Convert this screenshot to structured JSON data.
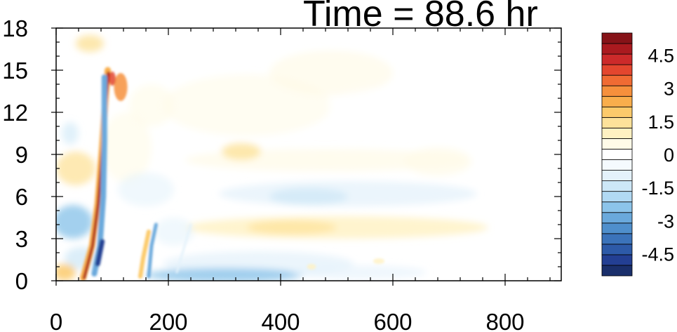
{
  "chart_data": {
    "type": "heatmap",
    "title": "Time = 88.6 hr",
    "xlabel": "",
    "ylabel": "",
    "xlim": [
      0,
      900
    ],
    "ylim": [
      0,
      18
    ],
    "x_ticks": [
      0,
      200,
      400,
      600,
      800
    ],
    "x_tick_labels": [
      "0",
      "200",
      "400",
      "600",
      "800"
    ],
    "y_ticks": [
      0,
      3,
      6,
      9,
      12,
      15,
      18
    ],
    "y_tick_labels": [
      "0",
      "3",
      "6",
      "9",
      "12",
      "15",
      "18"
    ],
    "grid": false,
    "colorbar": {
      "placement": "right",
      "levels": [
        -5.5,
        -5,
        -4.5,
        -4,
        -3.5,
        -3,
        -2.5,
        -2,
        -1.5,
        -1,
        -0.5,
        0,
        0.5,
        1,
        1.5,
        2,
        2.5,
        3,
        3.5,
        4,
        4.5,
        5,
        5.5
      ],
      "labels": [
        "4.5",
        "3",
        "1.5",
        "0",
        "-1.5",
        "-3",
        "-4.5"
      ],
      "label_values": [
        4.5,
        3,
        1.5,
        0,
        -1.5,
        -3,
        -4.5
      ],
      "colors": [
        "#1a2f6b",
        "#233f93",
        "#2d5aa8",
        "#3b73ba",
        "#4f8fcc",
        "#6aa9dc",
        "#8cc4ea",
        "#b1d9f3",
        "#cde7f7",
        "#e4f2fb",
        "#f5fafe",
        "#ffffff",
        "#fffbe8",
        "#fff1c2",
        "#fde29a",
        "#fcca6b",
        "#f9ae4c",
        "#f6903c",
        "#f06b33",
        "#e3462e",
        "#cc2a2a",
        "#aa1a1f",
        "#861318"
      ]
    },
    "features": [
      {
        "name": "tilted positive band",
        "x_range": [
          60,
          95
        ],
        "y_range": [
          0,
          15
        ],
        "value_max": 5.5
      },
      {
        "name": "tilted negative band",
        "x_range": [
          60,
          95
        ],
        "y_range": [
          0,
          15
        ],
        "value_min": -5
      },
      {
        "name": "upper-left positive patch",
        "x": 120,
        "y": 14,
        "value": 3
      },
      {
        "name": "mid-level positive layer",
        "x_range": [
          250,
          730
        ],
        "y": 9,
        "value": 1
      },
      {
        "name": "low-level positive layer",
        "x_range": [
          250,
          760
        ],
        "y": 3.5,
        "value": 1.5
      },
      {
        "name": "mid-level negative layer",
        "x_range": [
          300,
          700
        ],
        "y": 6,
        "value": -1
      },
      {
        "name": "surface negative layer",
        "x_range": [
          100,
          650
        ],
        "y": 0.5,
        "value": -2.5
      }
    ]
  }
}
